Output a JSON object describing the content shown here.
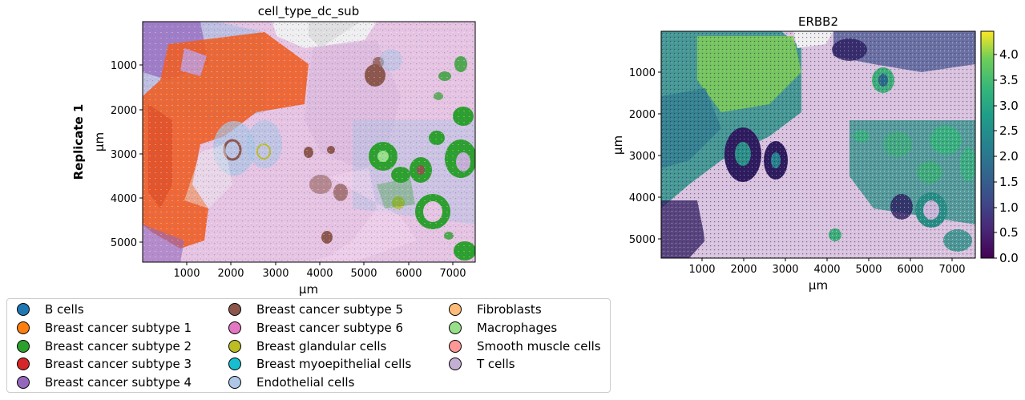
{
  "chart_data": [
    {
      "type": "scatter",
      "title": "cell_type_dc_sub",
      "row_label": "Replicate 1",
      "xlabel": "µm",
      "ylabel": "µm",
      "xlim": [
        0,
        7500
      ],
      "ylim": [
        5450,
        0
      ],
      "xticks": [
        1000,
        2000,
        3000,
        4000,
        5000,
        6000,
        7000
      ],
      "yticks": [
        1000,
        2000,
        3000,
        4000,
        5000
      ],
      "xtick_labels": [
        "1000",
        "2000",
        "3000",
        "4000",
        "5000",
        "6000",
        "7000"
      ],
      "ytick_labels": [
        "1000",
        "2000",
        "3000",
        "4000",
        "5000"
      ],
      "legend": {
        "placement": "below",
        "entries": [
          {
            "label": "B cells",
            "color": "#1f77b4"
          },
          {
            "label": "Breast cancer subtype 1",
            "color": "#ff7f0e"
          },
          {
            "label": "Breast cancer subtype 2",
            "color": "#2ca02c"
          },
          {
            "label": "Breast cancer subtype 3",
            "color": "#d62728"
          },
          {
            "label": "Breast cancer subtype 4",
            "color": "#9467bd"
          },
          {
            "label": "Breast cancer subtype 5",
            "color": "#8c564b"
          },
          {
            "label": "Breast cancer subtype 6",
            "color": "#e377c2"
          },
          {
            "label": "Breast glandular cells",
            "color": "#bcbd22"
          },
          {
            "label": "Breast myoepithelial cells",
            "color": "#17becf"
          },
          {
            "label": "Endothelial cells",
            "color": "#aec7e8"
          },
          {
            "label": "Fibroblasts",
            "color": "#ffbb78"
          },
          {
            "label": "Macrophages",
            "color": "#98df8a"
          },
          {
            "label": "Smooth muscle cells",
            "color": "#ff9896"
          },
          {
            "label": "T cells",
            "color": "#c5b0d5"
          }
        ]
      },
      "background_color": "#e6bfe0"
    },
    {
      "type": "heatmap",
      "title": "ERBB2",
      "xlabel": "µm",
      "ylabel": "µm",
      "xlim": [
        0,
        7500
      ],
      "ylim": [
        5450,
        0
      ],
      "xticks": [
        1000,
        2000,
        3000,
        4000,
        5000,
        6000,
        7000
      ],
      "yticks": [
        1000,
        2000,
        3000,
        4000,
        5000
      ],
      "xtick_labels": [
        "1000",
        "2000",
        "3000",
        "4000",
        "5000",
        "6000",
        "7000"
      ],
      "ytick_labels": [
        "1000",
        "2000",
        "3000",
        "4000",
        "5000"
      ],
      "colorbar": {
        "colormap": "viridis",
        "range": [
          0,
          4.45
        ],
        "ticks": [
          0.0,
          0.5,
          1.0,
          1.5,
          2.0,
          2.5,
          3.0,
          3.5,
          4.0
        ],
        "tick_labels": [
          "0.0",
          "0.5",
          "1.0",
          "1.5",
          "2.0",
          "2.5",
          "3.0",
          "3.5",
          "4.0"
        ]
      }
    }
  ]
}
